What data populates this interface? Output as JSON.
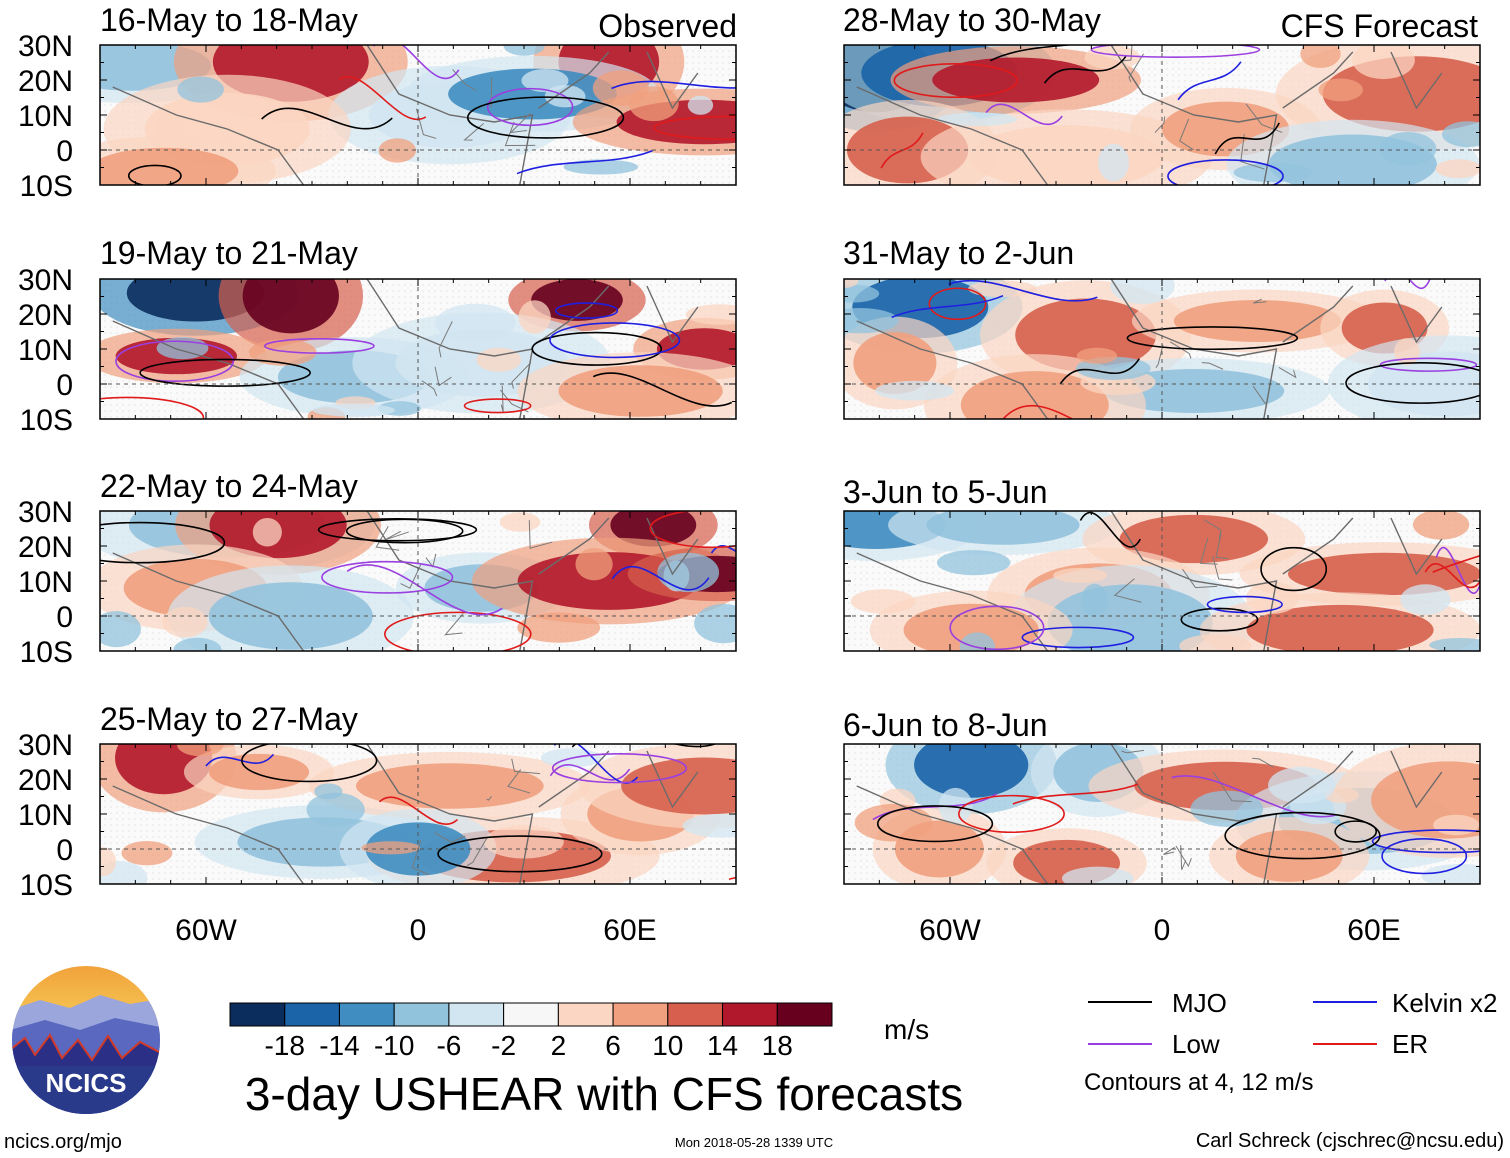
{
  "figure": {
    "title": "3-day USHEAR with CFS forecasts",
    "source_url": "ncics.org/mjo",
    "timestamp": "Mon 2018-05-28 1339 UTC",
    "author": "Carl Schreck (cjschrec@ncsu.edu)",
    "logo_text": "NCICS"
  },
  "columns": [
    {
      "label": "Observed"
    },
    {
      "label": "CFS Forecast"
    }
  ],
  "panels": [
    {
      "title": "16-May to 18-May",
      "kind": "Observed"
    },
    {
      "title": "19-May to 21-May",
      "kind": "Observed"
    },
    {
      "title": "22-May to 24-May",
      "kind": "Observed"
    },
    {
      "title": "25-May to 27-May",
      "kind": "Observed"
    },
    {
      "title": "28-May to 30-May",
      "kind": "CFS Forecast"
    },
    {
      "title": "31-May to 2-Jun",
      "kind": "CFS Forecast"
    },
    {
      "title": "3-Jun to 5-Jun",
      "kind": "CFS Forecast"
    },
    {
      "title": "6-Jun to 8-Jun",
      "kind": "CFS Forecast"
    }
  ],
  "axes": {
    "lat_ticks": [
      "30N",
      "20N",
      "10N",
      "0",
      "10S"
    ],
    "lon_ticks": [
      "60W",
      "0",
      "60E"
    ],
    "lat_range": [
      -10,
      30
    ],
    "lon_range": [
      -90,
      90
    ]
  },
  "colorbar": {
    "labels": [
      "-18",
      "-14",
      "-10",
      "-6",
      "-2",
      "2",
      "6",
      "10",
      "14",
      "18"
    ],
    "colors": [
      "#0b2d5e",
      "#1b64a8",
      "#3f8dc1",
      "#92c3dd",
      "#d1e6f1",
      "#f7f7f7",
      "#fbd6c2",
      "#f0a07e",
      "#d6604d",
      "#b2182b",
      "#67001f"
    ],
    "units": "m/s"
  },
  "legend": {
    "items": [
      {
        "label": "MJO",
        "color": "#000000"
      },
      {
        "label": "Kelvin x2",
        "color": "#1f1fe0"
      },
      {
        "label": "Low",
        "color": "#9a3fe0"
      },
      {
        "label": "ER",
        "color": "#e01a1a"
      }
    ],
    "note": "Contours at 4, 12 m/s"
  }
}
